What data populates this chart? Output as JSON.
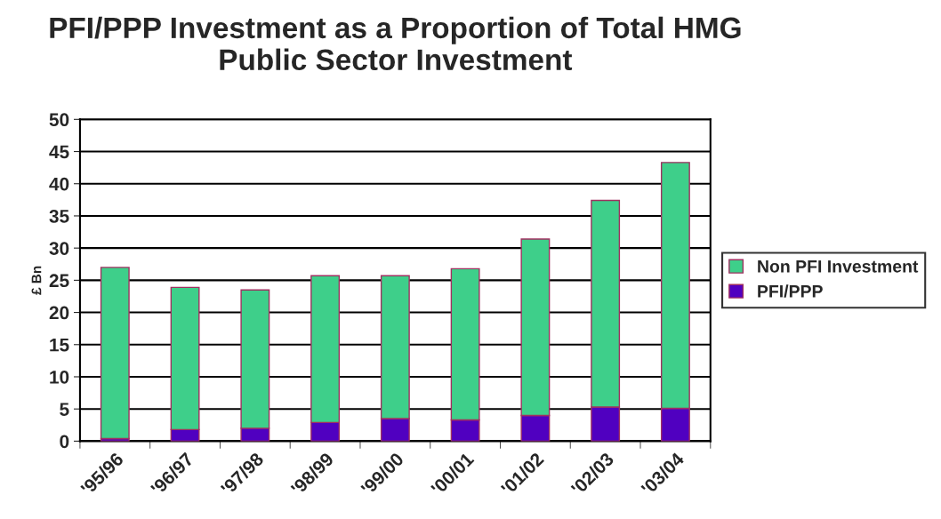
{
  "chart_data": {
    "type": "bar",
    "title": "PFI/PPP Investment as a Proportion of Total HMG\nPublic Sector Investment",
    "ylabel": "£ Bn",
    "categories": [
      "'95/96",
      "'96/97",
      "'97/98",
      "'98/99",
      "'99/00",
      "'00/01",
      "'01/02",
      "'02/03",
      "'03/04"
    ],
    "series": [
      {
        "name": "PFI/PPP",
        "color": "#5000c0",
        "values": [
          0.4,
          1.8,
          2.0,
          2.9,
          3.5,
          3.3,
          4.0,
          5.3,
          5.1
        ]
      },
      {
        "name": "Non PFI Investment",
        "color": "#3ecf8a",
        "values": [
          26.6,
          22.1,
          21.5,
          22.8,
          22.2,
          23.5,
          27.4,
          32.1,
          38.2
        ]
      }
    ],
    "stacked": true,
    "ylim": [
      0,
      50
    ],
    "yticks": [
      0,
      5,
      10,
      15,
      20,
      25,
      30,
      35,
      40,
      45,
      50
    ],
    "grid": "y",
    "legend": "right"
  }
}
